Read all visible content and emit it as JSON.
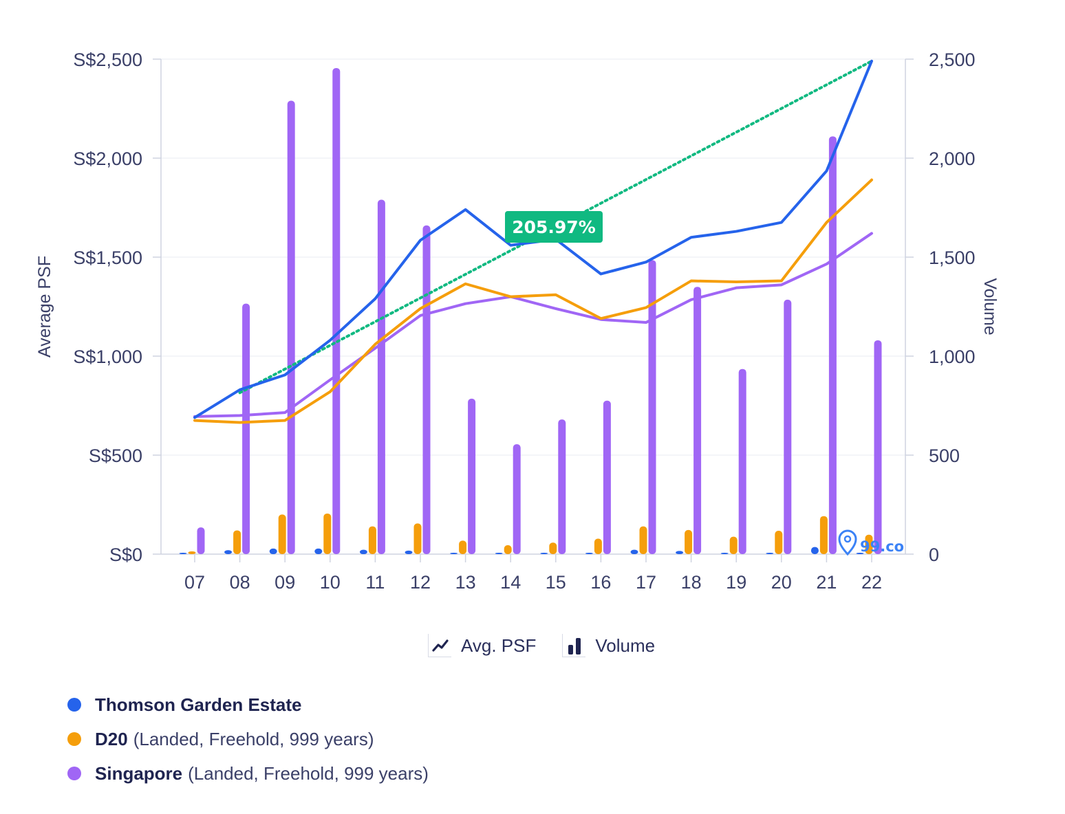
{
  "chart_data": {
    "type": "line",
    "x_label": "",
    "categories": [
      "07",
      "08",
      "09",
      "10",
      "11",
      "12",
      "13",
      "14",
      "15",
      "16",
      "17",
      "18",
      "19",
      "20",
      "21",
      "22"
    ],
    "y_left": {
      "title": "Average PSF",
      "range": [
        0,
        2500
      ],
      "ticks": [
        "S$0",
        "S$500",
        "S$1,000",
        "S$1,500",
        "S$2,000",
        "S$2,500"
      ]
    },
    "y_right": {
      "title": "Volume",
      "range": [
        0,
        2500
      ],
      "ticks": [
        "0",
        "500",
        "1,000",
        "1,500",
        "2,000",
        "2,500"
      ]
    },
    "grid": "horizontal",
    "series": [
      {
        "name": "Thomson Garden Estate",
        "color": "#2563eb",
        "psf": [
          690,
          830,
          905,
          1080,
          1290,
          1585,
          1740,
          1560,
          1590,
          1415,
          1475,
          1600,
          1630,
          1675,
          1935,
          2490
        ],
        "volume": [
          2,
          20,
          28,
          28,
          22,
          18,
          6,
          2,
          2,
          6,
          22,
          16,
          4,
          4,
          36,
          4
        ]
      },
      {
        "name": "D20",
        "color": "#f59e0b",
        "psf": [
          675,
          665,
          675,
          820,
          1060,
          1240,
          1365,
          1300,
          1310,
          1190,
          1245,
          1380,
          1375,
          1380,
          1675,
          1890
        ],
        "volume": [
          14,
          120,
          200,
          205,
          140,
          155,
          68,
          45,
          58,
          78,
          140,
          122,
          88,
          118,
          192,
          98
        ]
      },
      {
        "name": "Singapore",
        "color": "#a066f5",
        "psf": [
          695,
          700,
          715,
          880,
          1040,
          1205,
          1265,
          1300,
          1240,
          1185,
          1170,
          1285,
          1345,
          1360,
          1465,
          1620
        ],
        "volume": [
          135,
          1265,
          2290,
          2455,
          1790,
          1660,
          785,
          555,
          680,
          775,
          1485,
          1350,
          935,
          1285,
          2110,
          1080
        ]
      }
    ],
    "trend": {
      "color": "#10b981",
      "from": {
        "x": "08",
        "y": 815
      },
      "to": {
        "x": "22",
        "y": 2490
      },
      "label": "205.97%"
    },
    "legend_position": "bottom"
  },
  "legend": {
    "toggles": [
      {
        "label": "Avg. PSF",
        "icon": "line-chart-icon"
      },
      {
        "label": "Volume",
        "icon": "bar-chart-icon"
      }
    ],
    "series": [
      {
        "name": "Thomson Garden Estate",
        "detail": "",
        "color": "#2563eb"
      },
      {
        "name": "D20",
        "detail": "(Landed, Freehold, 999 years)",
        "color": "#f59e0b"
      },
      {
        "name": "Singapore",
        "detail": "(Landed, Freehold, 999 years)",
        "color": "#a066f5"
      }
    ]
  },
  "watermark": {
    "text": "99.co",
    "color": "#3b82f6"
  }
}
